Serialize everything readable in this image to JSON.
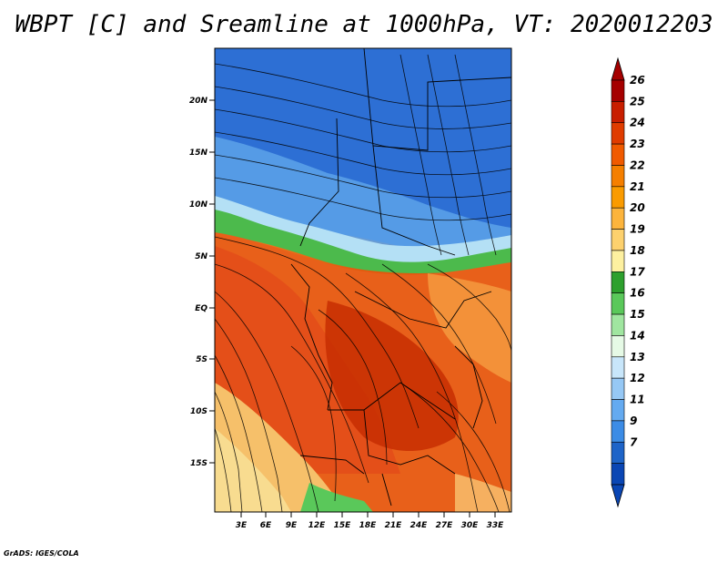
{
  "title": "WBPT [C] and Sreamline at 1000hPa, VT: 2020012203",
  "credit": "GrADS: IGES/COLA",
  "lat_ticks": [
    "20N",
    "15N",
    "10N",
    "5N",
    "EQ",
    "5S",
    "10S",
    "15S"
  ],
  "lon_ticks": [
    "3E",
    "6E",
    "9E",
    "12E",
    "15E",
    "18E",
    "21E",
    "24E",
    "27E",
    "30E",
    "33E"
  ],
  "colorbar": {
    "labels": [
      "26",
      "25",
      "24",
      "23",
      "22",
      "21",
      "20",
      "19",
      "18",
      "17",
      "16",
      "15",
      "14",
      "13",
      "12",
      "11",
      "9",
      "7"
    ],
    "colors": [
      "#a50000",
      "#c81e00",
      "#e03c00",
      "#f05a00",
      "#f57f00",
      "#fa9b00",
      "#fcb43c",
      "#fdd16e",
      "#fdf0a0",
      "#2da02d",
      "#5ac85a",
      "#a0e6a0",
      "#e6fae6",
      "#c8e6fa",
      "#96c8f5",
      "#64aaf0",
      "#3c8ce6",
      "#1e64c8",
      "#0a46b4"
    ]
  },
  "icons": {
    "north_arrow_top": "triangle-up-icon",
    "arrow_bottom": "triangle-down-icon"
  }
}
